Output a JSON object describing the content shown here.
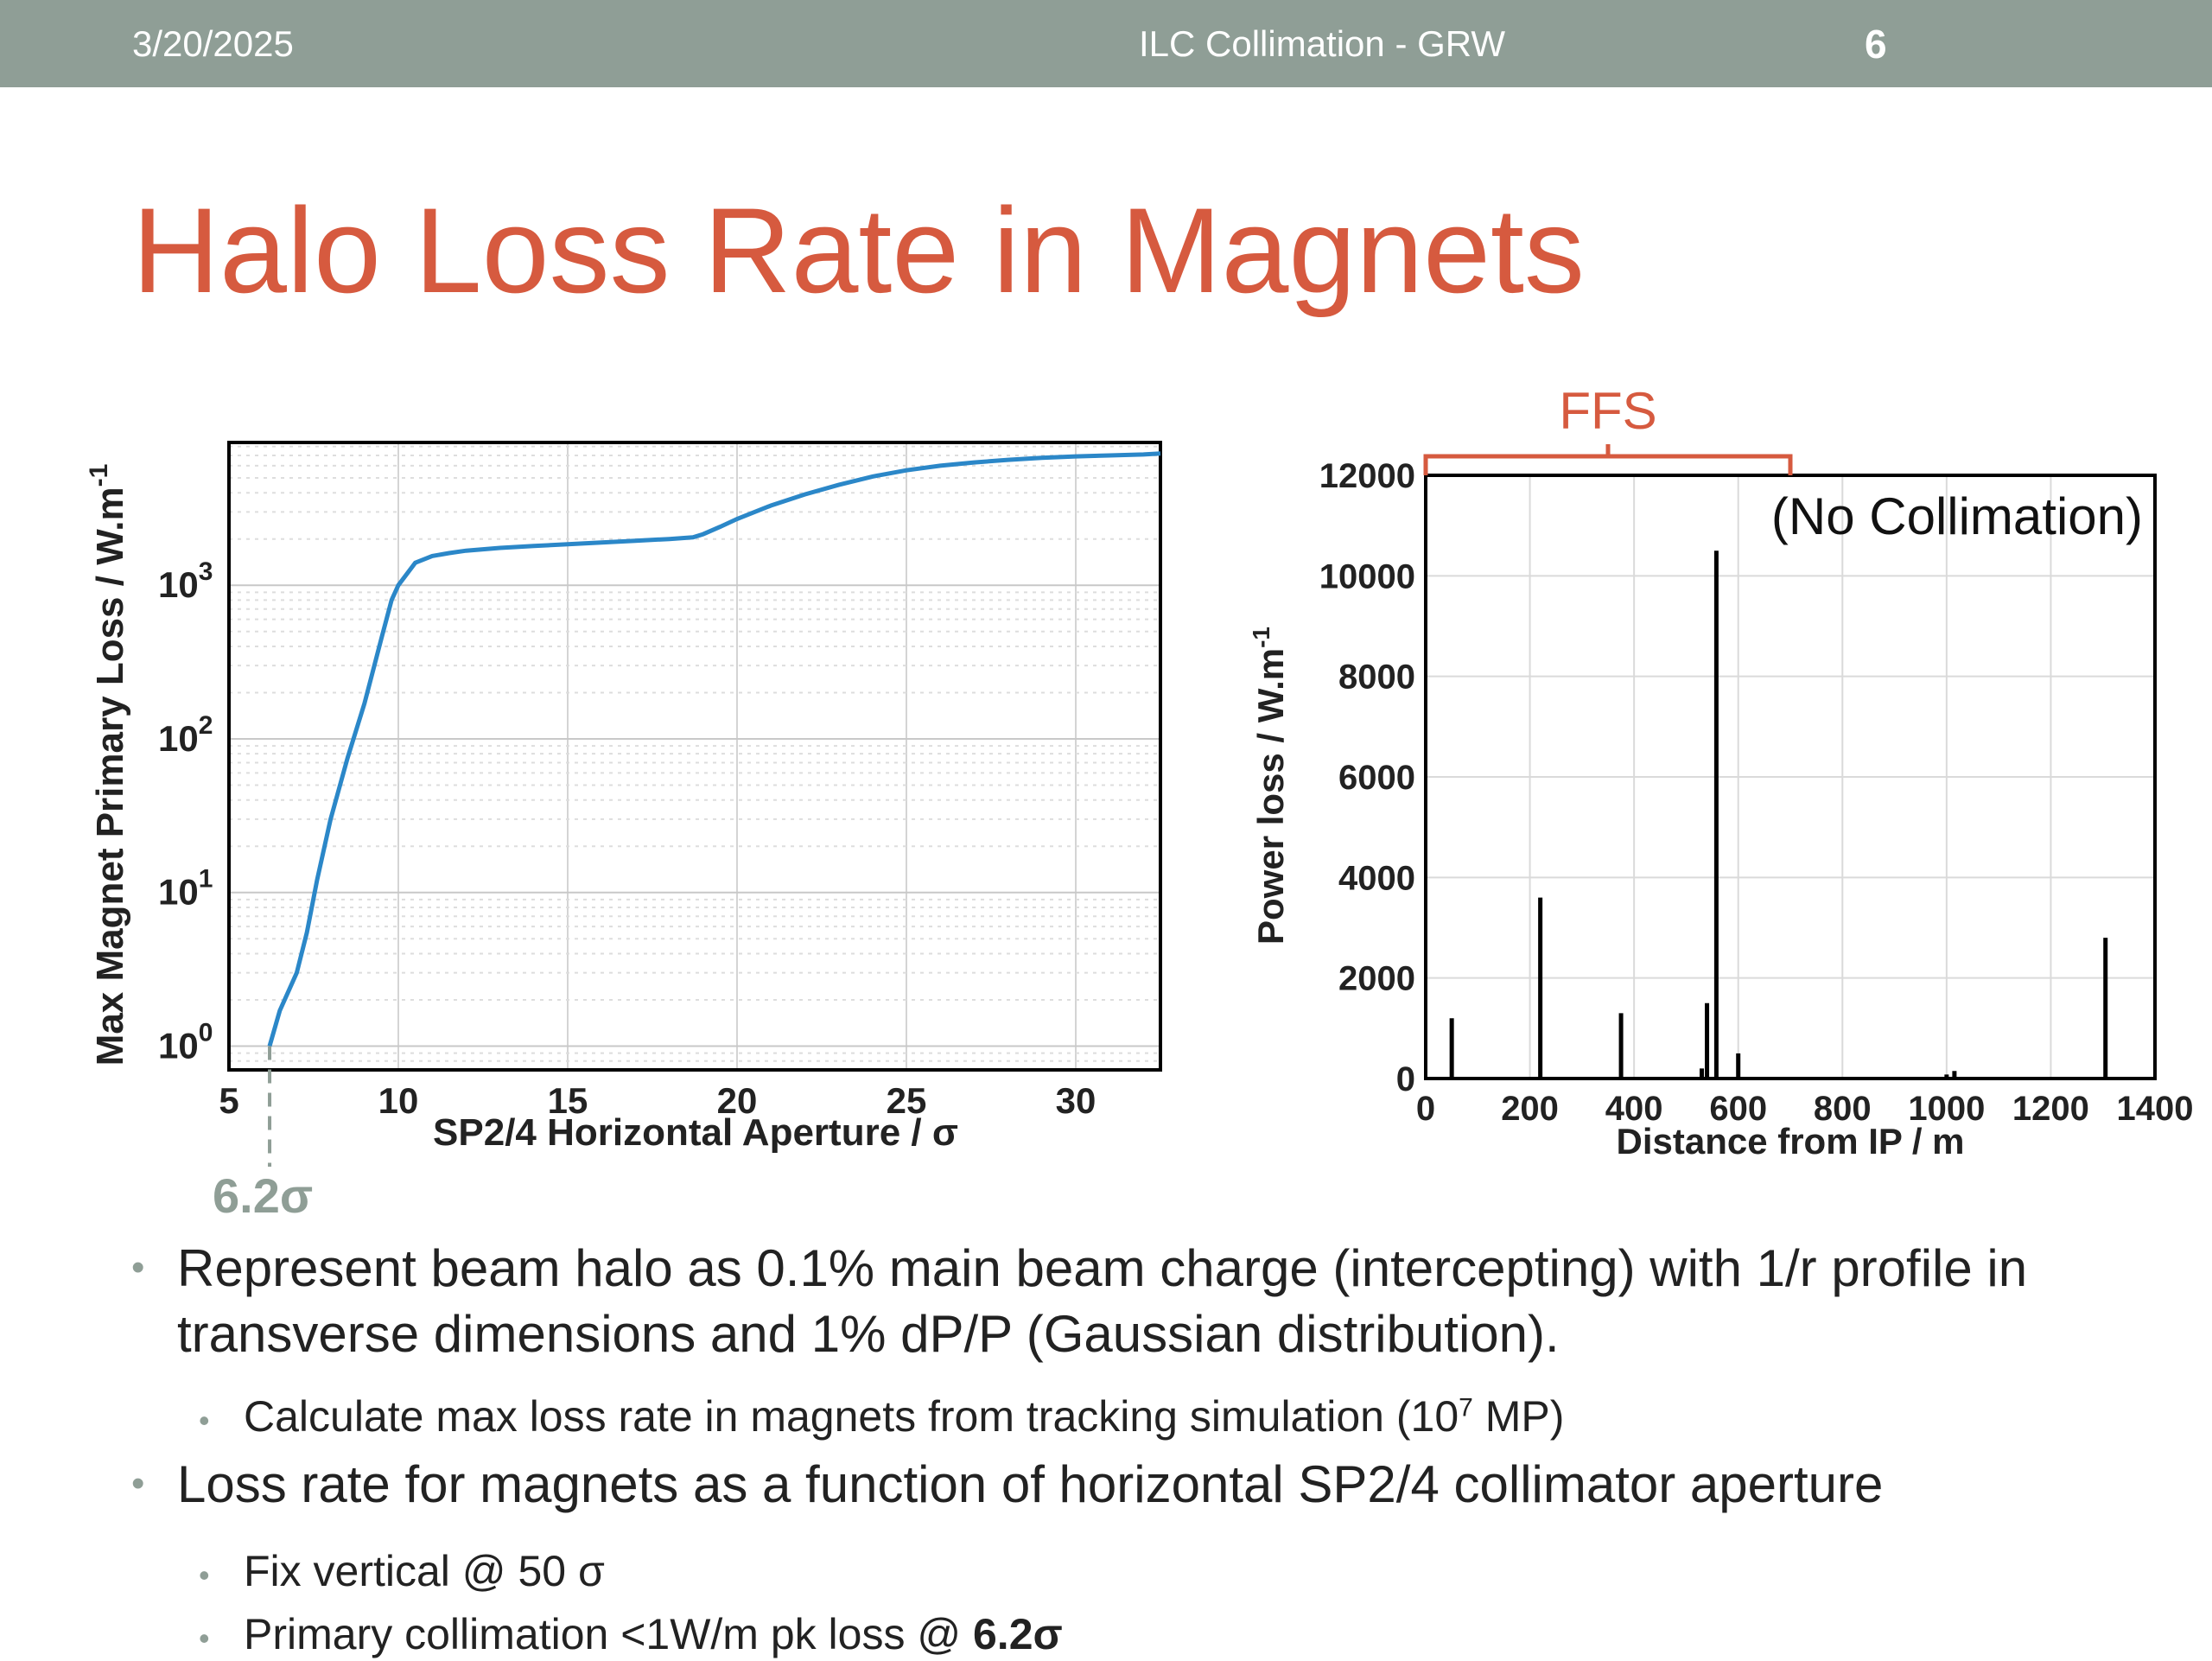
{
  "header": {
    "date": "3/20/2025",
    "center": "ILC Collimation - GRW",
    "page": "6"
  },
  "title": "Halo Loss Rate in Magnets",
  "colors": {
    "header_bg": "#8f9e96",
    "title": "#d65a3f",
    "curve": "#2b87c8",
    "bars": "#000000",
    "marker": "#8f9e96"
  },
  "chart_data": [
    {
      "type": "line",
      "xlabel": "SP2/4 Horizontal Aperture / σ",
      "ylabel": "Max Magnet Primary Loss / W.m",
      "ylabel_sup": "-1",
      "xlim": [
        5,
        32.5
      ],
      "ylim": [
        0.7,
        8500
      ],
      "yscale": "log",
      "grid": true,
      "x_ticks": [
        5,
        10,
        15,
        20,
        25,
        30
      ],
      "x_tick_labels": [
        "5",
        "10",
        "15",
        "20",
        "25",
        "30"
      ],
      "y_ticks": [
        1,
        10,
        100,
        1000
      ],
      "y_tick_labels": [
        "10",
        "10",
        "10",
        "10"
      ],
      "y_tick_sups": [
        "0",
        "1",
        "2",
        "3"
      ],
      "series": [
        {
          "x": [
            6.2,
            6.5,
            7.0,
            7.3,
            7.6,
            8.0,
            8.5,
            9.0,
            9.5,
            9.8,
            10.0,
            10.5,
            11.0,
            11.5,
            12.0,
            13.0,
            14.0,
            15.0,
            16.0,
            17.0,
            18.0,
            18.7,
            19.0,
            19.5,
            20.0,
            21.0,
            22.0,
            23.0,
            24.0,
            25.0,
            26.0,
            27.0,
            28.0,
            29.0,
            30.0,
            31.0,
            32.0,
            32.5
          ],
          "y": [
            1.0,
            1.7,
            3.0,
            5.5,
            12,
            30,
            75,
            170,
            450,
            800,
            1000,
            1400,
            1550,
            1620,
            1680,
            1750,
            1800,
            1850,
            1900,
            1950,
            2000,
            2050,
            2150,
            2400,
            2700,
            3300,
            3900,
            4500,
            5100,
            5600,
            6000,
            6300,
            6550,
            6750,
            6900,
            7000,
            7100,
            7200
          ]
        }
      ],
      "marker": {
        "x": 6.2,
        "label": "6.2σ"
      }
    },
    {
      "type": "bar",
      "annotation": "(No Collimation)",
      "xlabel": "Distance from IP / m",
      "ylabel": "Power loss / W.m",
      "ylabel_sup": "-1",
      "xlim": [
        0,
        1400
      ],
      "ylim": [
        0,
        12000
      ],
      "grid": true,
      "x_ticks": [
        0,
        200,
        400,
        600,
        800,
        1000,
        1200,
        1400
      ],
      "x_tick_labels": [
        "0",
        "200",
        "400",
        "600",
        "800",
        "1000",
        "1200",
        "1400"
      ],
      "y_ticks": [
        0,
        2000,
        4000,
        6000,
        8000,
        10000,
        12000
      ],
      "y_tick_labels": [
        "0",
        "2000",
        "4000",
        "6000",
        "8000",
        "10000",
        "12000"
      ],
      "bars": {
        "x": [
          50,
          220,
          375,
          530,
          540,
          558,
          600,
          1000,
          1015,
          1305
        ],
        "y": [
          1200,
          3600,
          1300,
          200,
          1500,
          10500,
          500,
          80,
          150,
          2800
        ]
      },
      "region": {
        "label": "FFS",
        "x_range": [
          0,
          700
        ]
      }
    }
  ],
  "bullets": [
    {
      "text": "Represent beam halo as 0.1% main beam charge (intercepting) with 1/r profile in transverse dimensions and 1% dP/P (Gaussian distribution).",
      "sub": [
        {
          "pre": "Calculate max loss rate in magnets from tracking simulation (10",
          "sup": "7",
          "post": " MP)"
        }
      ]
    },
    {
      "text": "Loss rate for magnets as a function of horizontal SP2/4 collimator aperture",
      "sub": [
        {
          "text": "Fix vertical @ 50 σ"
        },
        {
          "pre": "Primary collimation <1W/m pk loss @ ",
          "bold": "6.2σ"
        }
      ]
    }
  ]
}
